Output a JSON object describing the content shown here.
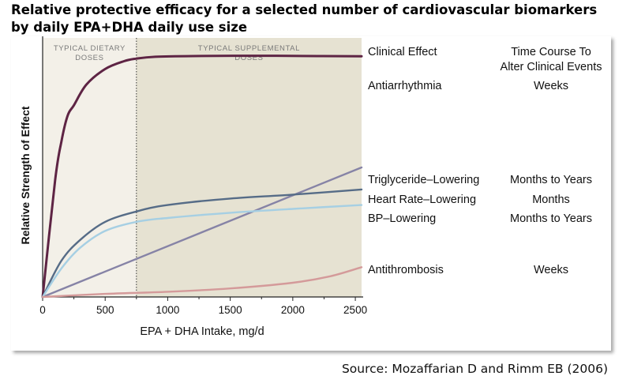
{
  "title_line1": "Relative protective efficacy for a selected number of cardiovascular biomarkers",
  "title_line2": "by daily EPA+DHA daily use size",
  "source": "Source: Mozaffarian D and Rimm EB (2006)",
  "chart_data": {
    "type": "line",
    "xlabel": "EPA + DHA Intake, mg/d",
    "ylabel": "Relative Strength of Effect",
    "xlim": [
      0,
      2550
    ],
    "ylim": [
      0,
      100
    ],
    "xticks": [
      0,
      500,
      1000,
      1500,
      2000,
      2500
    ],
    "regions": [
      {
        "label_line1": "TYPICAL DIETARY",
        "label_line2": "DOSES",
        "x_range": [
          0,
          750
        ],
        "color": "#f3f0e8"
      },
      {
        "label_line1": "TYPICAL SUPPLEMENTAL",
        "label_line2": "DOSES",
        "x_range": [
          750,
          2550
        ],
        "color": "#e6e2d2"
      }
    ],
    "columns": {
      "effect_header": "Clinical Effect",
      "time_header_line1": "Time Course To",
      "time_header_line2": "Alter Clinical Events"
    },
    "series": [
      {
        "name": "Antiarrhythmia",
        "time_course": "Weeks",
        "color": "#5e2444",
        "x": [
          0,
          100,
          150,
          200,
          250,
          350,
          500,
          650,
          750,
          900,
          1200,
          1700,
          2200,
          2550
        ],
        "y": [
          0,
          45,
          60,
          70,
          74,
          82,
          88,
          91,
          92,
          92.7,
          93,
          93.1,
          93,
          92.9
        ]
      },
      {
        "name": "Triglyceride-Lowering",
        "time_course": "Months to Years",
        "color": "#8683a6",
        "x": [
          0,
          2550
        ],
        "y": [
          0,
          50
        ]
      },
      {
        "name": "Heart Rate-Lowering",
        "time_course": "Months",
        "color": "#566c87",
        "x": [
          0,
          150,
          300,
          500,
          750,
          1000,
          1500,
          2000,
          2550
        ],
        "y": [
          0,
          14,
          22,
          29,
          33,
          35.5,
          38,
          39.5,
          41.5
        ]
      },
      {
        "name": "BP-Lowering",
        "time_course": "Months to Years",
        "color": "#a6cfe3",
        "x": [
          0,
          150,
          300,
          500,
          750,
          1000,
          1500,
          2000,
          2550
        ],
        "y": [
          0,
          11,
          19,
          25.5,
          29,
          30.5,
          32.5,
          34,
          35.5
        ]
      },
      {
        "name": "Antithrombosis",
        "time_course": "Weeks",
        "color": "#d49a9a",
        "x": [
          0,
          500,
          1000,
          1500,
          2000,
          2300,
          2550
        ],
        "y": [
          0,
          1.2,
          2,
          3.3,
          5.5,
          8,
          11.5
        ]
      }
    ]
  }
}
